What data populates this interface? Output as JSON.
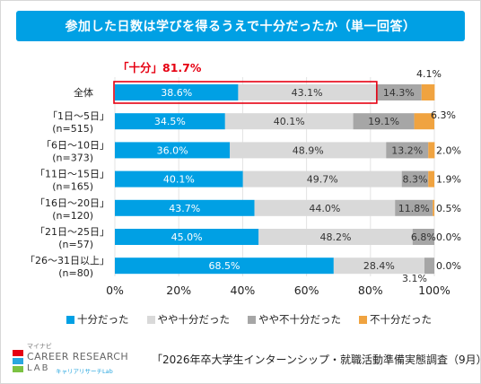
{
  "title": "参加した日数は学びを得るうえで十分だったか（単一回答）",
  "callout": "「十分」81.7%",
  "colors": {
    "title_bg": "#00a0e4",
    "highlight": "#e60012",
    "callout_text": "#e60012"
  },
  "chart_data": {
    "type": "bar",
    "orientation": "horizontal",
    "stacked": true,
    "categories": [
      [
        "全体"
      ],
      [
        "「1日～5日」",
        "(n=515)"
      ],
      [
        "「6日～10日」",
        "(n=373)"
      ],
      [
        "「11日～15日」",
        "(n=165)"
      ],
      [
        "「16日～20日」",
        "(n=120)"
      ],
      [
        "「21日～25日」",
        "(n=57)"
      ],
      [
        "「26～31日以上」",
        "(n=80)"
      ]
    ],
    "series": [
      {
        "name": "十分だった",
        "color": "#00a0e4",
        "values": [
          38.6,
          34.5,
          36.0,
          40.1,
          43.7,
          45.0,
          68.5
        ]
      },
      {
        "name": "やや十分だった",
        "color": "#d9d9d9",
        "values": [
          43.1,
          40.1,
          48.9,
          49.7,
          44.0,
          48.2,
          28.4
        ]
      },
      {
        "name": "やや不十分だった",
        "color": "#a6a6a6",
        "values": [
          14.3,
          19.1,
          13.2,
          8.3,
          11.8,
          6.8,
          3.1
        ]
      },
      {
        "name": "不十分だった",
        "color": "#f0a340",
        "values": [
          4.1,
          6.3,
          2.0,
          1.9,
          0.5,
          0.0,
          0.0
        ]
      }
    ],
    "xlim": [
      0,
      100
    ],
    "xticks": [
      "0%",
      "20%",
      "40%",
      "60%",
      "80%",
      "100%"
    ],
    "grid": true,
    "legend": "bottom"
  },
  "footer": {
    "brand_small": "マイナビ",
    "brand_line1": "CAREER RESEARCH",
    "brand_line2": "LAB",
    "brand_sub": "キャリアリサーチLab",
    "source": "「2026年卒大学生インターンシップ・就職活動準備実態調査（9月）」"
  }
}
